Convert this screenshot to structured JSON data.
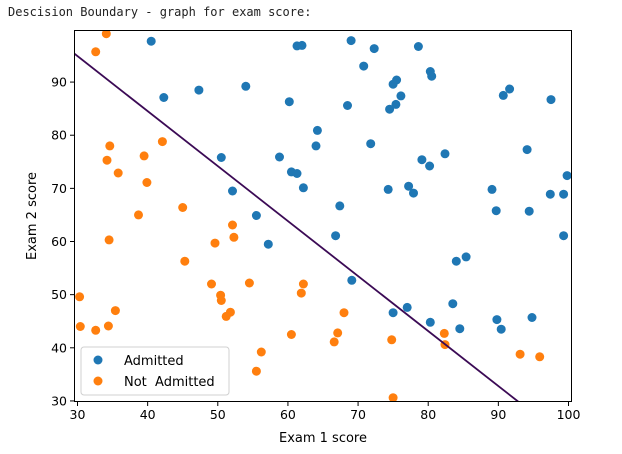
{
  "output": {
    "caption": "Descision Boundary - graph for exam score:"
  },
  "chart_data": {
    "type": "scatter",
    "title": "",
    "xlabel": "Exam 1 score",
    "ylabel": "Exam 2 score",
    "xlim": [
      29.5,
      100.5
    ],
    "ylim": [
      29.8,
      99.8
    ],
    "xticks": [
      30,
      40,
      50,
      60,
      70,
      80,
      90,
      100
    ],
    "yticks": [
      30,
      40,
      50,
      60,
      70,
      80,
      90
    ],
    "grid": false,
    "legend_position": "lower-left",
    "series": [
      {
        "name": "Admitted",
        "color": "#1f77b4",
        "points": [
          [
            40.5,
            97.7
          ],
          [
            61.3,
            96.8
          ],
          [
            62.0,
            96.9
          ],
          [
            69.0,
            97.8
          ],
          [
            72.3,
            96.3
          ],
          [
            78.6,
            96.7
          ],
          [
            70.8,
            93.0
          ],
          [
            80.3,
            92.0
          ],
          [
            80.5,
            91.1
          ],
          [
            75.5,
            90.4
          ],
          [
            75.0,
            89.6
          ],
          [
            42.3,
            87.1
          ],
          [
            47.3,
            88.5
          ],
          [
            54.0,
            89.2
          ],
          [
            60.2,
            86.3
          ],
          [
            68.5,
            85.6
          ],
          [
            74.5,
            84.9
          ],
          [
            75.4,
            85.8
          ],
          [
            76.1,
            87.4
          ],
          [
            90.7,
            87.5
          ],
          [
            91.6,
            88.7
          ],
          [
            97.5,
            86.7
          ],
          [
            64.2,
            80.9
          ],
          [
            64.0,
            78.0
          ],
          [
            71.8,
            78.4
          ],
          [
            94.1,
            77.3
          ],
          [
            50.5,
            75.8
          ],
          [
            58.8,
            75.9
          ],
          [
            79.1,
            75.4
          ],
          [
            82.4,
            76.5
          ],
          [
            80.2,
            74.2
          ],
          [
            60.5,
            73.1
          ],
          [
            61.3,
            72.8
          ],
          [
            62.2,
            70.1
          ],
          [
            52.1,
            69.5
          ],
          [
            74.3,
            69.8
          ],
          [
            77.2,
            70.4
          ],
          [
            77.9,
            69.1
          ],
          [
            89.1,
            69.8
          ],
          [
            97.4,
            68.9
          ],
          [
            99.3,
            68.9
          ],
          [
            99.8,
            72.4
          ],
          [
            67.4,
            66.7
          ],
          [
            89.7,
            65.8
          ],
          [
            94.4,
            65.7
          ],
          [
            55.5,
            64.9
          ],
          [
            57.2,
            59.5
          ],
          [
            66.8,
            61.1
          ],
          [
            99.3,
            61.1
          ],
          [
            84.0,
            56.3
          ],
          [
            85.4,
            57.1
          ],
          [
            69.1,
            52.7
          ],
          [
            83.5,
            48.3
          ],
          [
            75.0,
            46.6
          ],
          [
            77.0,
            47.6
          ],
          [
            80.3,
            44.8
          ],
          [
            89.8,
            45.3
          ],
          [
            94.8,
            45.7
          ],
          [
            84.5,
            43.6
          ],
          [
            90.4,
            43.5
          ]
        ]
      },
      {
        "name": "Not  Admitted",
        "color": "#ff7f0e",
        "points": [
          [
            34.1,
            99.1
          ],
          [
            32.6,
            95.7
          ],
          [
            34.6,
            78.0
          ],
          [
            34.2,
            75.3
          ],
          [
            39.5,
            76.1
          ],
          [
            42.1,
            78.8
          ],
          [
            35.8,
            72.9
          ],
          [
            39.9,
            71.1
          ],
          [
            45.0,
            66.4
          ],
          [
            38.7,
            65.0
          ],
          [
            34.5,
            60.3
          ],
          [
            49.6,
            59.7
          ],
          [
            52.3,
            60.8
          ],
          [
            52.1,
            63.1
          ],
          [
            45.3,
            56.3
          ],
          [
            49.1,
            52.0
          ],
          [
            54.5,
            52.2
          ],
          [
            62.2,
            52.0
          ],
          [
            61.9,
            50.3
          ],
          [
            30.3,
            49.6
          ],
          [
            50.4,
            49.9
          ],
          [
            50.5,
            48.9
          ],
          [
            51.8,
            46.7
          ],
          [
            51.2,
            45.9
          ],
          [
            68.0,
            46.6
          ],
          [
            35.4,
            47.0
          ],
          [
            30.4,
            44.0
          ],
          [
            32.6,
            43.3
          ],
          [
            34.4,
            44.1
          ],
          [
            60.5,
            42.5
          ],
          [
            67.1,
            42.8
          ],
          [
            66.6,
            41.1
          ],
          [
            74.8,
            41.5
          ],
          [
            82.3,
            42.7
          ],
          [
            82.4,
            40.6
          ],
          [
            56.2,
            39.2
          ],
          [
            93.1,
            38.8
          ],
          [
            95.9,
            38.3
          ],
          [
            55.5,
            35.6
          ],
          [
            75.0,
            30.6
          ]
        ]
      }
    ],
    "decision_boundary": {
      "name": "decision boundary",
      "color": "#3b0a55",
      "from": [
        29.5,
        95.4
      ],
      "to": [
        92.9,
        29.8
      ]
    }
  }
}
